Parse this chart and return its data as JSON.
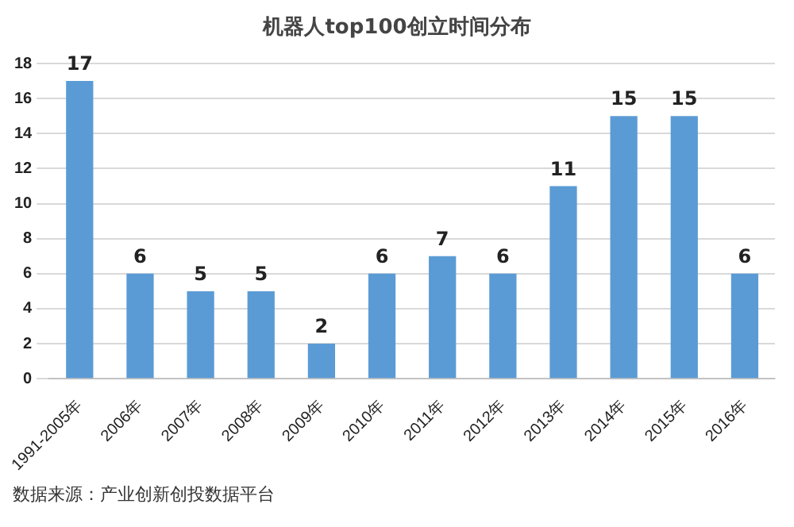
{
  "chart_data": {
    "type": "bar",
    "title": "机器人top100创立时间分布",
    "categories": [
      "1991-2005年",
      "2006年",
      "2007年",
      "2008年",
      "2009年",
      "2010年",
      "2011年",
      "2012年",
      "2013年",
      "2014年",
      "2015年",
      "2016年"
    ],
    "values": [
      17,
      6,
      5,
      5,
      2,
      6,
      7,
      6,
      11,
      15,
      15,
      6
    ],
    "color": "#5b9bd5",
    "ylim": [
      0,
      18
    ],
    "yticks": [
      0,
      2,
      4,
      6,
      8,
      10,
      12,
      14,
      16,
      18
    ],
    "grid": "y",
    "data_labels": true,
    "legend": false,
    "annotations": [
      "数据来源：产业创新创投数据平台"
    ]
  }
}
